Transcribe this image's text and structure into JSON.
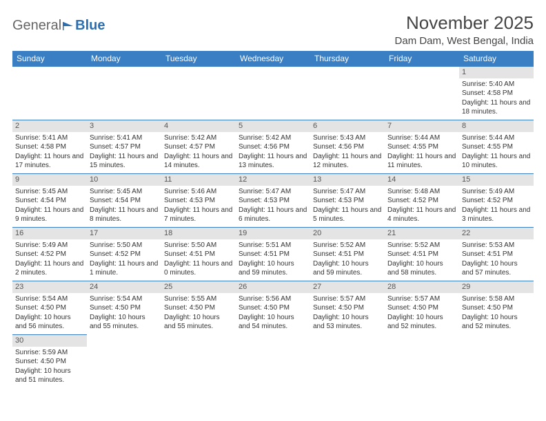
{
  "logo": {
    "text1": "General",
    "text2": "Blue"
  },
  "title": "November 2025",
  "location": "Dam Dam, West Bengal, India",
  "colors": {
    "header_bg": "#3a7fc4",
    "header_text": "#ffffff",
    "daynum_bg": "#e4e4e4",
    "border": "#3a7fc4",
    "text": "#333333",
    "logo_gray": "#666666",
    "logo_blue": "#2c6fb0"
  },
  "typography": {
    "title_fontsize": 26,
    "location_fontsize": 15,
    "header_fontsize": 12,
    "cell_fontsize": 10,
    "daynum_fontsize": 11
  },
  "columns": [
    "Sunday",
    "Monday",
    "Tuesday",
    "Wednesday",
    "Thursday",
    "Friday",
    "Saturday"
  ],
  "weeks": [
    [
      null,
      null,
      null,
      null,
      null,
      null,
      {
        "n": "1",
        "sr": "Sunrise: 5:40 AM",
        "ss": "Sunset: 4:58 PM",
        "dl": "Daylight: 11 hours and 18 minutes."
      }
    ],
    [
      {
        "n": "2",
        "sr": "Sunrise: 5:41 AM",
        "ss": "Sunset: 4:58 PM",
        "dl": "Daylight: 11 hours and 17 minutes."
      },
      {
        "n": "3",
        "sr": "Sunrise: 5:41 AM",
        "ss": "Sunset: 4:57 PM",
        "dl": "Daylight: 11 hours and 15 minutes."
      },
      {
        "n": "4",
        "sr": "Sunrise: 5:42 AM",
        "ss": "Sunset: 4:57 PM",
        "dl": "Daylight: 11 hours and 14 minutes."
      },
      {
        "n": "5",
        "sr": "Sunrise: 5:42 AM",
        "ss": "Sunset: 4:56 PM",
        "dl": "Daylight: 11 hours and 13 minutes."
      },
      {
        "n": "6",
        "sr": "Sunrise: 5:43 AM",
        "ss": "Sunset: 4:56 PM",
        "dl": "Daylight: 11 hours and 12 minutes."
      },
      {
        "n": "7",
        "sr": "Sunrise: 5:44 AM",
        "ss": "Sunset: 4:55 PM",
        "dl": "Daylight: 11 hours and 11 minutes."
      },
      {
        "n": "8",
        "sr": "Sunrise: 5:44 AM",
        "ss": "Sunset: 4:55 PM",
        "dl": "Daylight: 11 hours and 10 minutes."
      }
    ],
    [
      {
        "n": "9",
        "sr": "Sunrise: 5:45 AM",
        "ss": "Sunset: 4:54 PM",
        "dl": "Daylight: 11 hours and 9 minutes."
      },
      {
        "n": "10",
        "sr": "Sunrise: 5:45 AM",
        "ss": "Sunset: 4:54 PM",
        "dl": "Daylight: 11 hours and 8 minutes."
      },
      {
        "n": "11",
        "sr": "Sunrise: 5:46 AM",
        "ss": "Sunset: 4:53 PM",
        "dl": "Daylight: 11 hours and 7 minutes."
      },
      {
        "n": "12",
        "sr": "Sunrise: 5:47 AM",
        "ss": "Sunset: 4:53 PM",
        "dl": "Daylight: 11 hours and 6 minutes."
      },
      {
        "n": "13",
        "sr": "Sunrise: 5:47 AM",
        "ss": "Sunset: 4:53 PM",
        "dl": "Daylight: 11 hours and 5 minutes."
      },
      {
        "n": "14",
        "sr": "Sunrise: 5:48 AM",
        "ss": "Sunset: 4:52 PM",
        "dl": "Daylight: 11 hours and 4 minutes."
      },
      {
        "n": "15",
        "sr": "Sunrise: 5:49 AM",
        "ss": "Sunset: 4:52 PM",
        "dl": "Daylight: 11 hours and 3 minutes."
      }
    ],
    [
      {
        "n": "16",
        "sr": "Sunrise: 5:49 AM",
        "ss": "Sunset: 4:52 PM",
        "dl": "Daylight: 11 hours and 2 minutes."
      },
      {
        "n": "17",
        "sr": "Sunrise: 5:50 AM",
        "ss": "Sunset: 4:52 PM",
        "dl": "Daylight: 11 hours and 1 minute."
      },
      {
        "n": "18",
        "sr": "Sunrise: 5:50 AM",
        "ss": "Sunset: 4:51 PM",
        "dl": "Daylight: 11 hours and 0 minutes."
      },
      {
        "n": "19",
        "sr": "Sunrise: 5:51 AM",
        "ss": "Sunset: 4:51 PM",
        "dl": "Daylight: 10 hours and 59 minutes."
      },
      {
        "n": "20",
        "sr": "Sunrise: 5:52 AM",
        "ss": "Sunset: 4:51 PM",
        "dl": "Daylight: 10 hours and 59 minutes."
      },
      {
        "n": "21",
        "sr": "Sunrise: 5:52 AM",
        "ss": "Sunset: 4:51 PM",
        "dl": "Daylight: 10 hours and 58 minutes."
      },
      {
        "n": "22",
        "sr": "Sunrise: 5:53 AM",
        "ss": "Sunset: 4:51 PM",
        "dl": "Daylight: 10 hours and 57 minutes."
      }
    ],
    [
      {
        "n": "23",
        "sr": "Sunrise: 5:54 AM",
        "ss": "Sunset: 4:50 PM",
        "dl": "Daylight: 10 hours and 56 minutes."
      },
      {
        "n": "24",
        "sr": "Sunrise: 5:54 AM",
        "ss": "Sunset: 4:50 PM",
        "dl": "Daylight: 10 hours and 55 minutes."
      },
      {
        "n": "25",
        "sr": "Sunrise: 5:55 AM",
        "ss": "Sunset: 4:50 PM",
        "dl": "Daylight: 10 hours and 55 minutes."
      },
      {
        "n": "26",
        "sr": "Sunrise: 5:56 AM",
        "ss": "Sunset: 4:50 PM",
        "dl": "Daylight: 10 hours and 54 minutes."
      },
      {
        "n": "27",
        "sr": "Sunrise: 5:57 AM",
        "ss": "Sunset: 4:50 PM",
        "dl": "Daylight: 10 hours and 53 minutes."
      },
      {
        "n": "28",
        "sr": "Sunrise: 5:57 AM",
        "ss": "Sunset: 4:50 PM",
        "dl": "Daylight: 10 hours and 52 minutes."
      },
      {
        "n": "29",
        "sr": "Sunrise: 5:58 AM",
        "ss": "Sunset: 4:50 PM",
        "dl": "Daylight: 10 hours and 52 minutes."
      }
    ],
    [
      {
        "n": "30",
        "sr": "Sunrise: 5:59 AM",
        "ss": "Sunset: 4:50 PM",
        "dl": "Daylight: 10 hours and 51 minutes."
      },
      null,
      null,
      null,
      null,
      null,
      null
    ]
  ]
}
